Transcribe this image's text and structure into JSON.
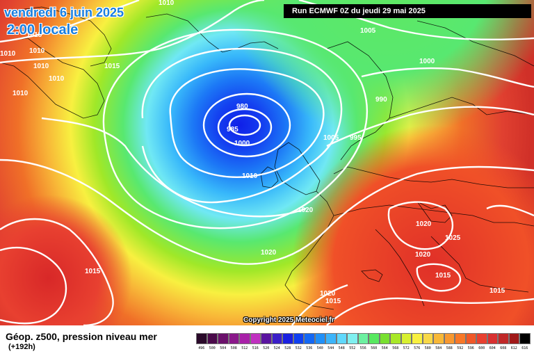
{
  "header": {
    "date": "vendredi 6 juin 2025",
    "time": "2:00 locale"
  },
  "run_info": "Run ECMWF 0Z du jeudi 29 mai 2025",
  "copyright": "Copyright 2025 Meteociel.fr",
  "legend": {
    "title": "Géop. z500, pression niveau mer",
    "subtitle": "(+192h)",
    "scale": [
      {
        "value": "496",
        "color": "#2a0a2a"
      },
      {
        "value": "500",
        "color": "#4a0a4a"
      },
      {
        "value": "504",
        "color": "#6a106a"
      },
      {
        "value": "508",
        "color": "#8a188a"
      },
      {
        "value": "512",
        "color": "#a820a8"
      },
      {
        "value": "516",
        "color": "#c030c0"
      },
      {
        "value": "520",
        "color": "#5a14a0"
      },
      {
        "value": "524",
        "color": "#3a1ec8"
      },
      {
        "value": "528",
        "color": "#1a20e0"
      },
      {
        "value": "532",
        "color": "#1040f0"
      },
      {
        "value": "536",
        "color": "#1468f4"
      },
      {
        "value": "540",
        "color": "#2090f8"
      },
      {
        "value": "544",
        "color": "#3cb4fa"
      },
      {
        "value": "548",
        "color": "#60d8fc"
      },
      {
        "value": "552",
        "color": "#80f0f0"
      },
      {
        "value": "556",
        "color": "#6cf0a0"
      },
      {
        "value": "560",
        "color": "#58e860"
      },
      {
        "value": "564",
        "color": "#78e030"
      },
      {
        "value": "568",
        "color": "#a8e828"
      },
      {
        "value": "572",
        "color": "#d8f030"
      },
      {
        "value": "576",
        "color": "#f8f040"
      },
      {
        "value": "580",
        "color": "#f8d848"
      },
      {
        "value": "584",
        "color": "#f8b838"
      },
      {
        "value": "588",
        "color": "#f89830"
      },
      {
        "value": "592",
        "color": "#f87828"
      },
      {
        "value": "596",
        "color": "#f05828"
      },
      {
        "value": "600",
        "color": "#e84030"
      },
      {
        "value": "604",
        "color": "#d83030"
      },
      {
        "value": "608",
        "color": "#c02828"
      },
      {
        "value": "612",
        "color": "#a01818"
      },
      {
        "value": "616",
        "color": "#000000"
      }
    ]
  },
  "isobar_labels": [
    {
      "text": "1010"
    },
    {
      "text": "1015"
    },
    {
      "text": "1010"
    },
    {
      "text": "1010"
    },
    {
      "text": "1010"
    },
    {
      "text": "1010"
    },
    {
      "text": "1015"
    },
    {
      "text": "1010"
    },
    {
      "text": "1005"
    },
    {
      "text": "1000"
    },
    {
      "text": "990"
    },
    {
      "text": "980"
    },
    {
      "text": "985"
    },
    {
      "text": "1000"
    },
    {
      "text": "1005"
    },
    {
      "text": "995"
    },
    {
      "text": "1010"
    },
    {
      "text": "1020"
    },
    {
      "text": "1020"
    },
    {
      "text": "1025"
    },
    {
      "text": "1015"
    },
    {
      "text": "1020"
    },
    {
      "text": "1020"
    },
    {
      "text": "1015"
    },
    {
      "text": "1015"
    },
    {
      "text": "1020"
    },
    {
      "text": "1015"
    }
  ]
}
